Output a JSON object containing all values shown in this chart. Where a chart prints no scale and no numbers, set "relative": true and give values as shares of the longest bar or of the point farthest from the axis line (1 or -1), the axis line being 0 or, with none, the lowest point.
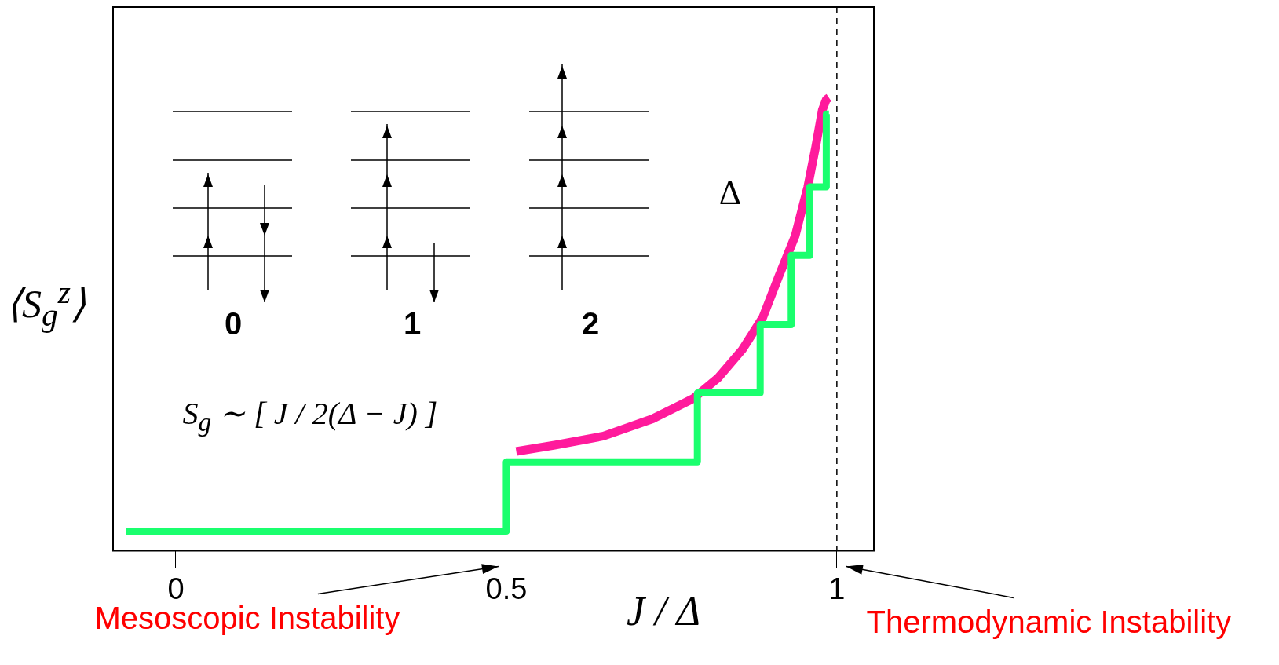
{
  "chart_data": {
    "type": "line",
    "relative": true,
    "xlabel": "J / Δ",
    "ylabel": "⟨S$_{g}$$^{z}$⟩",
    "xlim": [
      -0.095,
      1.056
    ],
    "xticks": [
      0,
      0.5,
      1
    ],
    "grid": false,
    "legend": false,
    "series": [
      {
        "type": "step",
        "color": "#1aff6e",
        "x": [
          -0.075,
          0.5,
          0.789,
          0.884,
          0.931,
          0.959,
          0.984,
          0.988
        ],
        "values": [
          0.043,
          0.196,
          0.348,
          0.499,
          0.652,
          0.803,
          0.964,
          0.964
        ]
      },
      {
        "type": "line",
        "color": "#ff1a9c",
        "x": [
          0.515,
          0.573,
          0.647,
          0.721,
          0.783,
          0.82,
          0.857,
          0.888,
          0.912,
          0.937,
          0.956,
          0.968,
          0.978,
          0.984,
          0.988
        ],
        "values": [
          0.219,
          0.233,
          0.253,
          0.291,
          0.336,
          0.381,
          0.444,
          0.515,
          0.605,
          0.695,
          0.803,
          0.892,
          0.973,
          0.996,
          1
        ]
      }
    ],
    "ref_lines": [
      {
        "axis": "x",
        "value": 1,
        "line_style": "dashed"
      }
    ],
    "annotations": [
      "0",
      "1",
      "2",
      "Δ",
      "S$_{g}$ ∼ [ J / 2(Δ − J) ]",
      "Mesoscopic Instability",
      "Thermodynamic Instability"
    ]
  }
}
